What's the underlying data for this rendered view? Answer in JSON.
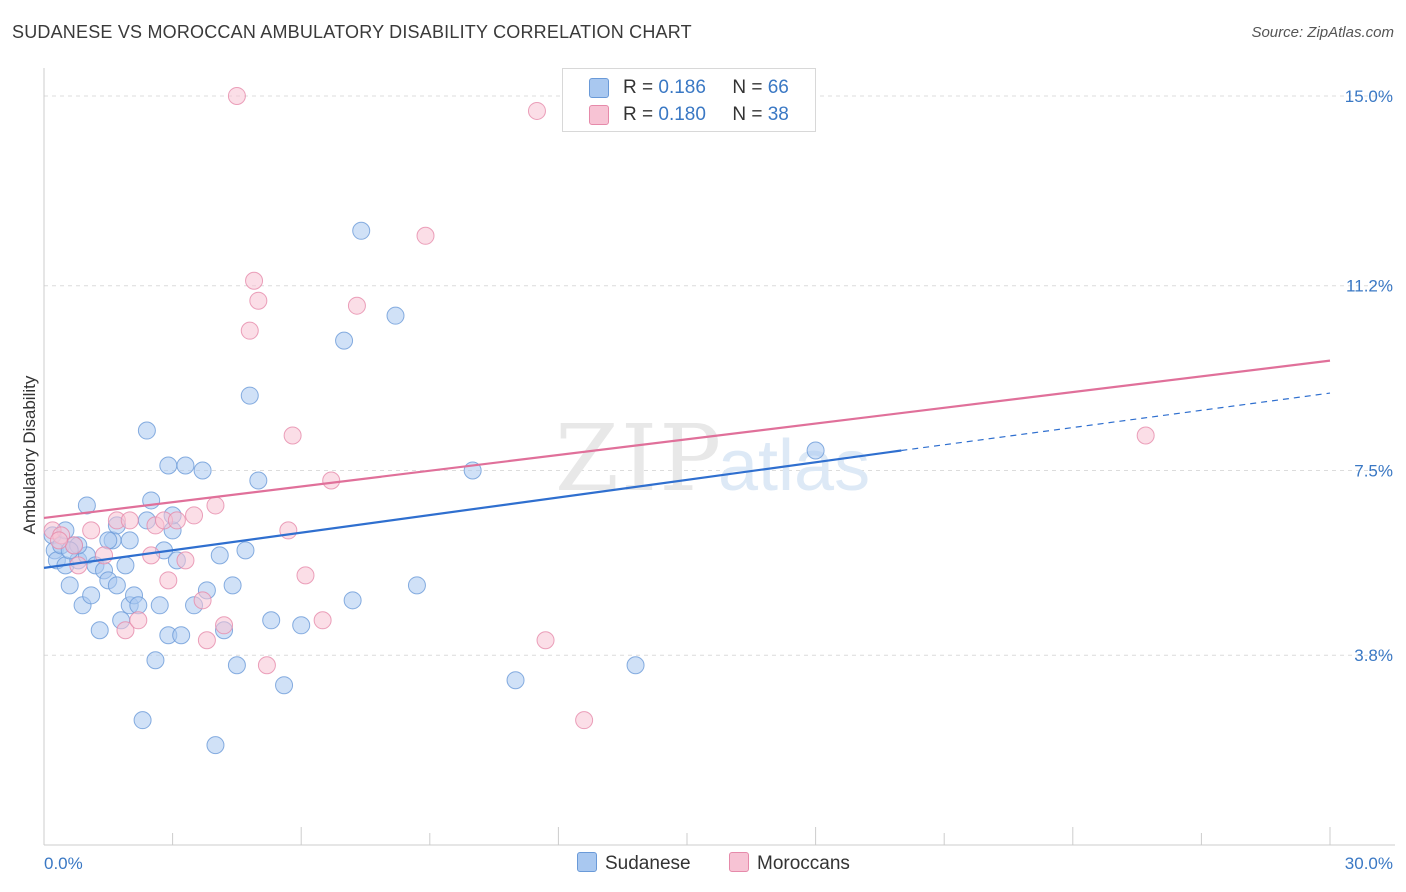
{
  "title": "SUDANESE VS MOROCCAN AMBULATORY DISABILITY CORRELATION CHART",
  "source": "Source: ZipAtlas.com",
  "watermark": {
    "zip": "ZIP",
    "atlas": "atlas"
  },
  "legend": {
    "rows": [
      {
        "r_label": "R =",
        "r_value": "0.186",
        "n_label": "N =",
        "n_value": "66",
        "color": "#a9c8f0",
        "border": "#6a9ad8"
      },
      {
        "r_label": "R =",
        "r_value": "0.180",
        "n_label": "N =",
        "n_value": "38",
        "color": "#f7c3d4",
        "border": "#e68aaa"
      }
    ]
  },
  "bottom_legend": [
    {
      "label": "Sudanese",
      "color": "#a9c8f0",
      "border": "#6a9ad8"
    },
    {
      "label": "Moroccans",
      "color": "#f7c3d4",
      "border": "#e68aaa"
    }
  ],
  "chart_data": {
    "type": "scatter",
    "title": "SUDANESE VS MOROCCAN AMBULATORY DISABILITY CORRELATION CHART",
    "xlabel": "",
    "ylabel": "Ambulatory Disability",
    "xlim": [
      0,
      30
    ],
    "ylim": [
      0,
      15.5
    ],
    "x_tick_labels": [
      "0.0%",
      "30.0%"
    ],
    "y_ticks": [
      {
        "value": 3.8,
        "label": "3.8%"
      },
      {
        "value": 7.5,
        "label": "7.5%"
      },
      {
        "value": 11.2,
        "label": "11.2%"
      },
      {
        "value": 15.0,
        "label": "15.0%"
      }
    ],
    "grid": "horizontal dashed",
    "legend_position": "top-center",
    "series": [
      {
        "name": "Sudanese",
        "color": "#6a9ad8",
        "fill": "#a9c8f0",
        "trend": {
          "x_start": 0,
          "y_start": 5.55,
          "x_solid_end": 20,
          "y_solid_end": 7.9,
          "x_end": 30,
          "y_end": 9.05
        },
        "points": [
          [
            0.2,
            6.2
          ],
          [
            0.25,
            5.9
          ],
          [
            0.3,
            5.7
          ],
          [
            0.4,
            6.0
          ],
          [
            0.5,
            5.6
          ],
          [
            0.5,
            6.3
          ],
          [
            0.6,
            5.2
          ],
          [
            0.7,
            6.0
          ],
          [
            0.8,
            5.7
          ],
          [
            0.9,
            4.8
          ],
          [
            1.0,
            6.8
          ],
          [
            1.0,
            5.8
          ],
          [
            1.1,
            5.0
          ],
          [
            1.2,
            5.6
          ],
          [
            1.3,
            4.3
          ],
          [
            1.4,
            5.5
          ],
          [
            1.5,
            5.3
          ],
          [
            1.6,
            6.1
          ],
          [
            1.7,
            6.4
          ],
          [
            1.7,
            5.2
          ],
          [
            1.8,
            4.5
          ],
          [
            1.9,
            5.6
          ],
          [
            2.0,
            4.8
          ],
          [
            2.0,
            6.1
          ],
          [
            2.1,
            5.0
          ],
          [
            2.2,
            4.8
          ],
          [
            2.3,
            2.5
          ],
          [
            2.4,
            8.3
          ],
          [
            2.5,
            6.9
          ],
          [
            2.6,
            3.7
          ],
          [
            2.7,
            4.8
          ],
          [
            2.8,
            5.9
          ],
          [
            2.9,
            4.2
          ],
          [
            2.9,
            7.6
          ],
          [
            3.0,
            6.3
          ],
          [
            3.1,
            5.7
          ],
          [
            3.2,
            4.2
          ],
          [
            3.3,
            7.6
          ],
          [
            3.5,
            4.8
          ],
          [
            3.7,
            7.5
          ],
          [
            3.8,
            5.1
          ],
          [
            4.0,
            2.0
          ],
          [
            4.1,
            5.8
          ],
          [
            4.2,
            4.3
          ],
          [
            4.4,
            5.2
          ],
          [
            4.5,
            3.6
          ],
          [
            4.7,
            5.9
          ],
          [
            4.8,
            9.0
          ],
          [
            5.0,
            7.3
          ],
          [
            5.3,
            4.5
          ],
          [
            5.6,
            3.2
          ],
          [
            6.0,
            4.4
          ],
          [
            7.0,
            10.1
          ],
          [
            7.2,
            4.9
          ],
          [
            7.4,
            12.3
          ],
          [
            8.2,
            10.6
          ],
          [
            8.7,
            5.2
          ],
          [
            10.0,
            7.5
          ],
          [
            11.0,
            3.3
          ],
          [
            13.8,
            3.6
          ],
          [
            3.0,
            6.6
          ],
          [
            2.4,
            6.5
          ],
          [
            1.5,
            6.1
          ],
          [
            0.8,
            6.0
          ],
          [
            0.6,
            5.9
          ],
          [
            18.0,
            7.9
          ]
        ]
      },
      {
        "name": "Moroccans",
        "color": "#e68aaa",
        "fill": "#f7c3d4",
        "trend": {
          "x_start": 0,
          "y_start": 6.55,
          "x_end": 30,
          "y_end": 9.7
        },
        "points": [
          [
            0.2,
            6.3
          ],
          [
            0.4,
            6.2
          ],
          [
            0.7,
            6.0
          ],
          [
            0.8,
            5.6
          ],
          [
            1.1,
            6.3
          ],
          [
            1.4,
            5.8
          ],
          [
            1.7,
            6.5
          ],
          [
            1.9,
            4.3
          ],
          [
            2.0,
            6.5
          ],
          [
            2.2,
            4.5
          ],
          [
            2.5,
            5.8
          ],
          [
            2.6,
            6.4
          ],
          [
            2.8,
            6.5
          ],
          [
            2.9,
            5.3
          ],
          [
            3.1,
            6.5
          ],
          [
            3.3,
            5.7
          ],
          [
            3.5,
            6.6
          ],
          [
            3.7,
            4.9
          ],
          [
            3.8,
            4.1
          ],
          [
            4.0,
            6.8
          ],
          [
            4.2,
            4.4
          ],
          [
            4.5,
            15.0
          ],
          [
            4.8,
            10.3
          ],
          [
            4.9,
            11.3
          ],
          [
            5.0,
            10.9
          ],
          [
            5.2,
            3.6
          ],
          [
            5.7,
            6.3
          ],
          [
            5.8,
            8.2
          ],
          [
            6.1,
            5.4
          ],
          [
            6.5,
            4.5
          ],
          [
            6.7,
            7.3
          ],
          [
            7.3,
            10.8
          ],
          [
            8.9,
            12.2
          ],
          [
            11.5,
            14.7
          ],
          [
            11.7,
            4.1
          ],
          [
            12.6,
            2.5
          ],
          [
            0.35,
            6.1
          ],
          [
            25.7,
            8.2
          ]
        ]
      }
    ]
  }
}
